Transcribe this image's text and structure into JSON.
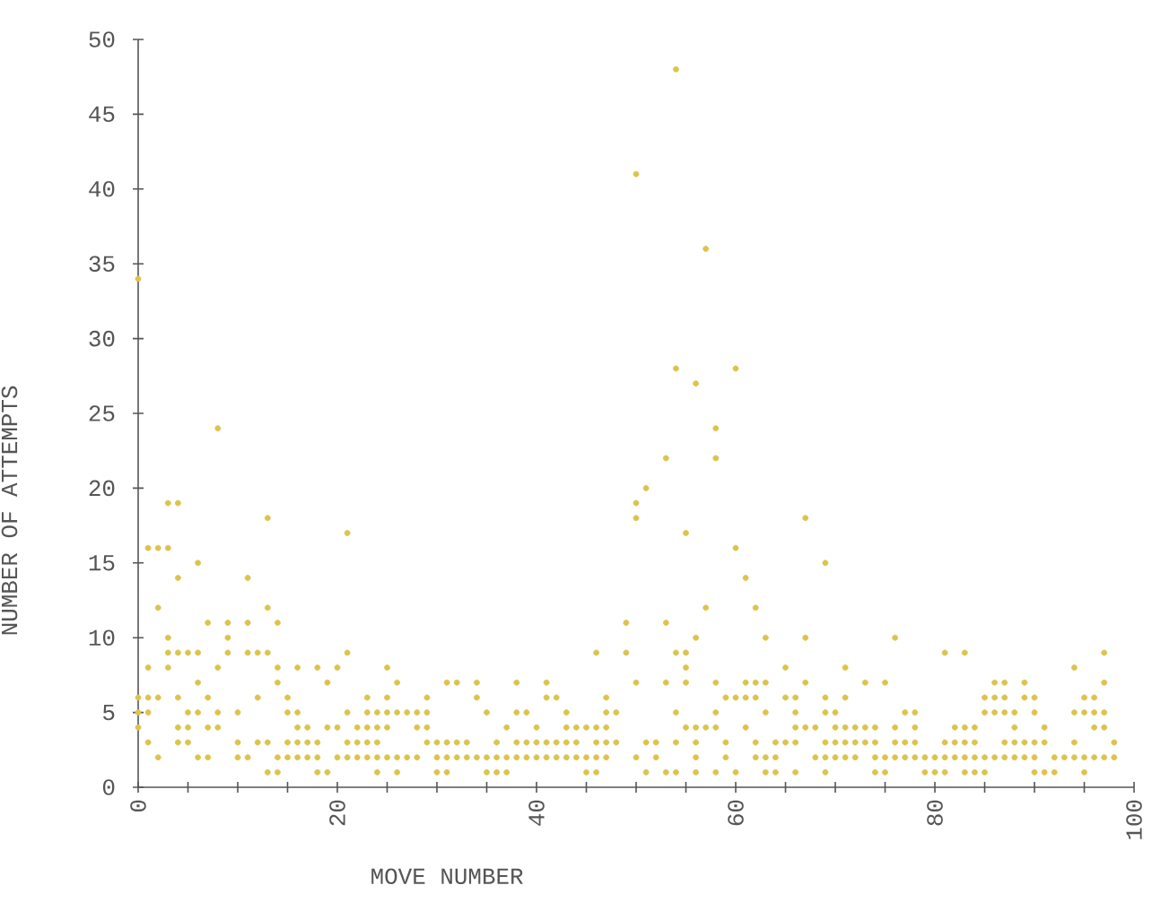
{
  "chart_data": {
    "type": "scatter",
    "xlabel": "MOVE NUMBER",
    "ylabel": "NUMBER OF ATTEMPTS",
    "xlim": [
      0,
      100
    ],
    "ylim": [
      0,
      50
    ],
    "xticks": [
      0,
      {
        "value": 5,
        "label": null
      },
      {
        "value": 10,
        "label": null
      },
      {
        "value": 15,
        "label": null
      },
      20,
      {
        "value": 25,
        "label": null
      },
      {
        "value": 30,
        "label": null
      },
      {
        "value": 35,
        "label": null
      },
      40,
      {
        "value": 45,
        "label": null
      },
      {
        "value": 50,
        "label": null
      },
      {
        "value": 55,
        "label": null
      },
      60,
      {
        "value": 65,
        "label": null
      },
      {
        "value": 70,
        "label": null
      },
      {
        "value": 75,
        "label": null
      },
      80,
      {
        "value": 85,
        "label": null
      },
      {
        "value": 90,
        "label": null
      },
      {
        "value": 95,
        "label": null
      },
      100
    ],
    "yticks": [
      0,
      5,
      10,
      15,
      20,
      25,
      30,
      35,
      40,
      45,
      50
    ],
    "grid": false,
    "series": [
      {
        "color": "#dcc34c",
        "x": [
          54,
          50,
          57,
          0,
          54,
          60,
          56,
          8,
          58,
          53,
          58,
          51,
          3,
          4,
          50,
          13,
          50,
          67,
          21,
          55,
          1,
          2,
          3,
          60,
          6,
          69,
          4,
          11,
          61,
          2,
          13,
          57,
          62,
          7,
          9,
          11,
          14,
          49,
          53,
          3,
          9,
          56,
          63,
          67,
          76,
          3,
          4,
          5,
          6,
          9,
          11,
          12,
          13,
          21,
          46,
          49,
          54,
          55,
          81,
          83,
          97,
          1,
          3,
          8,
          14,
          16,
          18,
          20,
          25,
          55,
          65,
          71,
          94,
          6,
          14,
          19,
          26,
          31,
          32,
          34,
          38,
          41,
          50,
          53,
          55,
          58,
          61,
          62,
          63,
          67,
          73,
          75,
          86,
          87,
          89,
          97,
          0,
          1,
          2,
          4,
          7,
          12,
          15,
          23,
          25,
          29,
          34,
          41,
          42,
          47,
          59,
          60,
          61,
          62,
          65,
          66,
          69,
          71,
          85,
          86,
          87,
          89,
          90,
          95,
          96,
          0,
          1,
          5,
          6,
          8,
          10,
          15,
          16,
          21,
          23,
          24,
          25,
          26,
          27,
          28,
          29,
          35,
          38,
          39,
          43,
          47,
          48,
          54,
          58,
          63,
          66,
          69,
          70,
          77,
          78,
          85,
          86,
          87,
          88,
          90,
          94,
          95,
          96,
          97,
          0,
          4,
          5,
          7,
          8,
          16,
          17,
          19,
          20,
          22,
          23,
          24,
          25,
          28,
          29,
          37,
          40,
          43,
          44,
          45,
          46,
          47,
          55,
          56,
          57,
          58,
          61,
          66,
          67,
          68,
          70,
          71,
          72,
          73,
          74,
          76,
          78,
          82,
          83,
          84,
          88,
          91,
          96,
          97,
          1,
          4,
          5,
          10,
          12,
          13,
          15,
          16,
          17,
          18,
          21,
          22,
          23,
          24,
          29,
          30,
          31,
          32,
          33,
          36,
          38,
          39,
          40,
          41,
          42,
          43,
          44,
          46,
          47,
          48,
          51,
          52,
          54,
          56,
          59,
          62,
          64,
          65,
          66,
          69,
          70,
          71,
          72,
          73,
          74,
          76,
          77,
          78,
          81,
          82,
          83,
          84,
          87,
          88,
          89,
          90,
          91,
          94,
          98,
          2,
          6,
          7,
          10,
          11,
          14,
          15,
          16,
          17,
          18,
          20,
          21,
          22,
          23,
          24,
          25,
          26,
          27,
          28,
          30,
          31,
          32,
          33,
          34,
          35,
          36,
          37,
          38,
          39,
          40,
          41,
          42,
          43,
          44,
          45,
          46,
          47,
          50,
          52,
          56,
          59,
          62,
          63,
          64,
          68,
          69,
          70,
          71,
          72,
          74,
          75,
          76,
          77,
          78,
          79,
          80,
          81,
          82,
          83,
          84,
          85,
          86,
          87,
          88,
          89,
          90,
          92,
          93,
          94,
          95,
          96,
          97,
          98,
          13,
          14,
          18,
          19,
          24,
          26,
          30,
          31,
          35,
          36,
          37,
          45,
          46,
          51,
          53,
          54,
          56,
          58,
          60,
          63,
          64,
          66,
          69,
          74,
          75,
          79,
          80,
          81,
          83,
          84,
          85,
          90,
          91,
          92,
          95
        ],
        "values": [
          48,
          41,
          36,
          34,
          28,
          28,
          27,
          24,
          24,
          22,
          22,
          20,
          19,
          19,
          19,
          18,
          18,
          18,
          17,
          17,
          16,
          16,
          16,
          16,
          15,
          15,
          14,
          14,
          14,
          12,
          12,
          12,
          12,
          11,
          11,
          11,
          11,
          11,
          11,
          10,
          10,
          10,
          10,
          10,
          10,
          9,
          9,
          9,
          9,
          9,
          9,
          9,
          9,
          9,
          9,
          9,
          9,
          9,
          9,
          9,
          9,
          8,
          8,
          8,
          8,
          8,
          8,
          8,
          8,
          8,
          8,
          8,
          8,
          7,
          7,
          7,
          7,
          7,
          7,
          7,
          7,
          7,
          7,
          7,
          7,
          7,
          7,
          7,
          7,
          7,
          7,
          7,
          7,
          7,
          7,
          7,
          6,
          6,
          6,
          6,
          6,
          6,
          6,
          6,
          6,
          6,
          6,
          6,
          6,
          6,
          6,
          6,
          6,
          6,
          6,
          6,
          6,
          6,
          6,
          6,
          6,
          6,
          6,
          6,
          6,
          5,
          5,
          5,
          5,
          5,
          5,
          5,
          5,
          5,
          5,
          5,
          5,
          5,
          5,
          5,
          5,
          5,
          5,
          5,
          5,
          5,
          5,
          5,
          5,
          5,
          5,
          5,
          5,
          5,
          5,
          5,
          5,
          5,
          5,
          5,
          5,
          5,
          5,
          5,
          4,
          4,
          4,
          4,
          4,
          4,
          4,
          4,
          4,
          4,
          4,
          4,
          4,
          4,
          4,
          4,
          4,
          4,
          4,
          4,
          4,
          4,
          4,
          4,
          4,
          4,
          4,
          4,
          4,
          4,
          4,
          4,
          4,
          4,
          4,
          4,
          4,
          4,
          4,
          4,
          4,
          4,
          4,
          4,
          3,
          3,
          3,
          3,
          3,
          3,
          3,
          3,
          3,
          3,
          3,
          3,
          3,
          3,
          3,
          3,
          3,
          3,
          3,
          3,
          3,
          3,
          3,
          3,
          3,
          3,
          3,
          3,
          3,
          3,
          3,
          3,
          3,
          3,
          3,
          3,
          3,
          3,
          3,
          3,
          3,
          3,
          3,
          3,
          3,
          3,
          3,
          3,
          3,
          3,
          3,
          3,
          3,
          3,
          3,
          3,
          3,
          3,
          3,
          2,
          2,
          2,
          2,
          2,
          2,
          2,
          2,
          2,
          2,
          2,
          2,
          2,
          2,
          2,
          2,
          2,
          2,
          2,
          2,
          2,
          2,
          2,
          2,
          2,
          2,
          2,
          2,
          2,
          2,
          2,
          2,
          2,
          2,
          2,
          2,
          2,
          2,
          2,
          2,
          2,
          2,
          2,
          2,
          2,
          2,
          2,
          2,
          2,
          2,
          2,
          2,
          2,
          2,
          2,
          2,
          2,
          2,
          2,
          2,
          2,
          2,
          2,
          2,
          2,
          2,
          2,
          2,
          2,
          2,
          2,
          2,
          2,
          1,
          1,
          1,
          1,
          1,
          1,
          1,
          1,
          1,
          1,
          1,
          1,
          1,
          1,
          1,
          1,
          1,
          1,
          1,
          1,
          1,
          1,
          1,
          1,
          1,
          1,
          1,
          1,
          1,
          1,
          1,
          1,
          1,
          1,
          1
        ]
      }
    ]
  }
}
